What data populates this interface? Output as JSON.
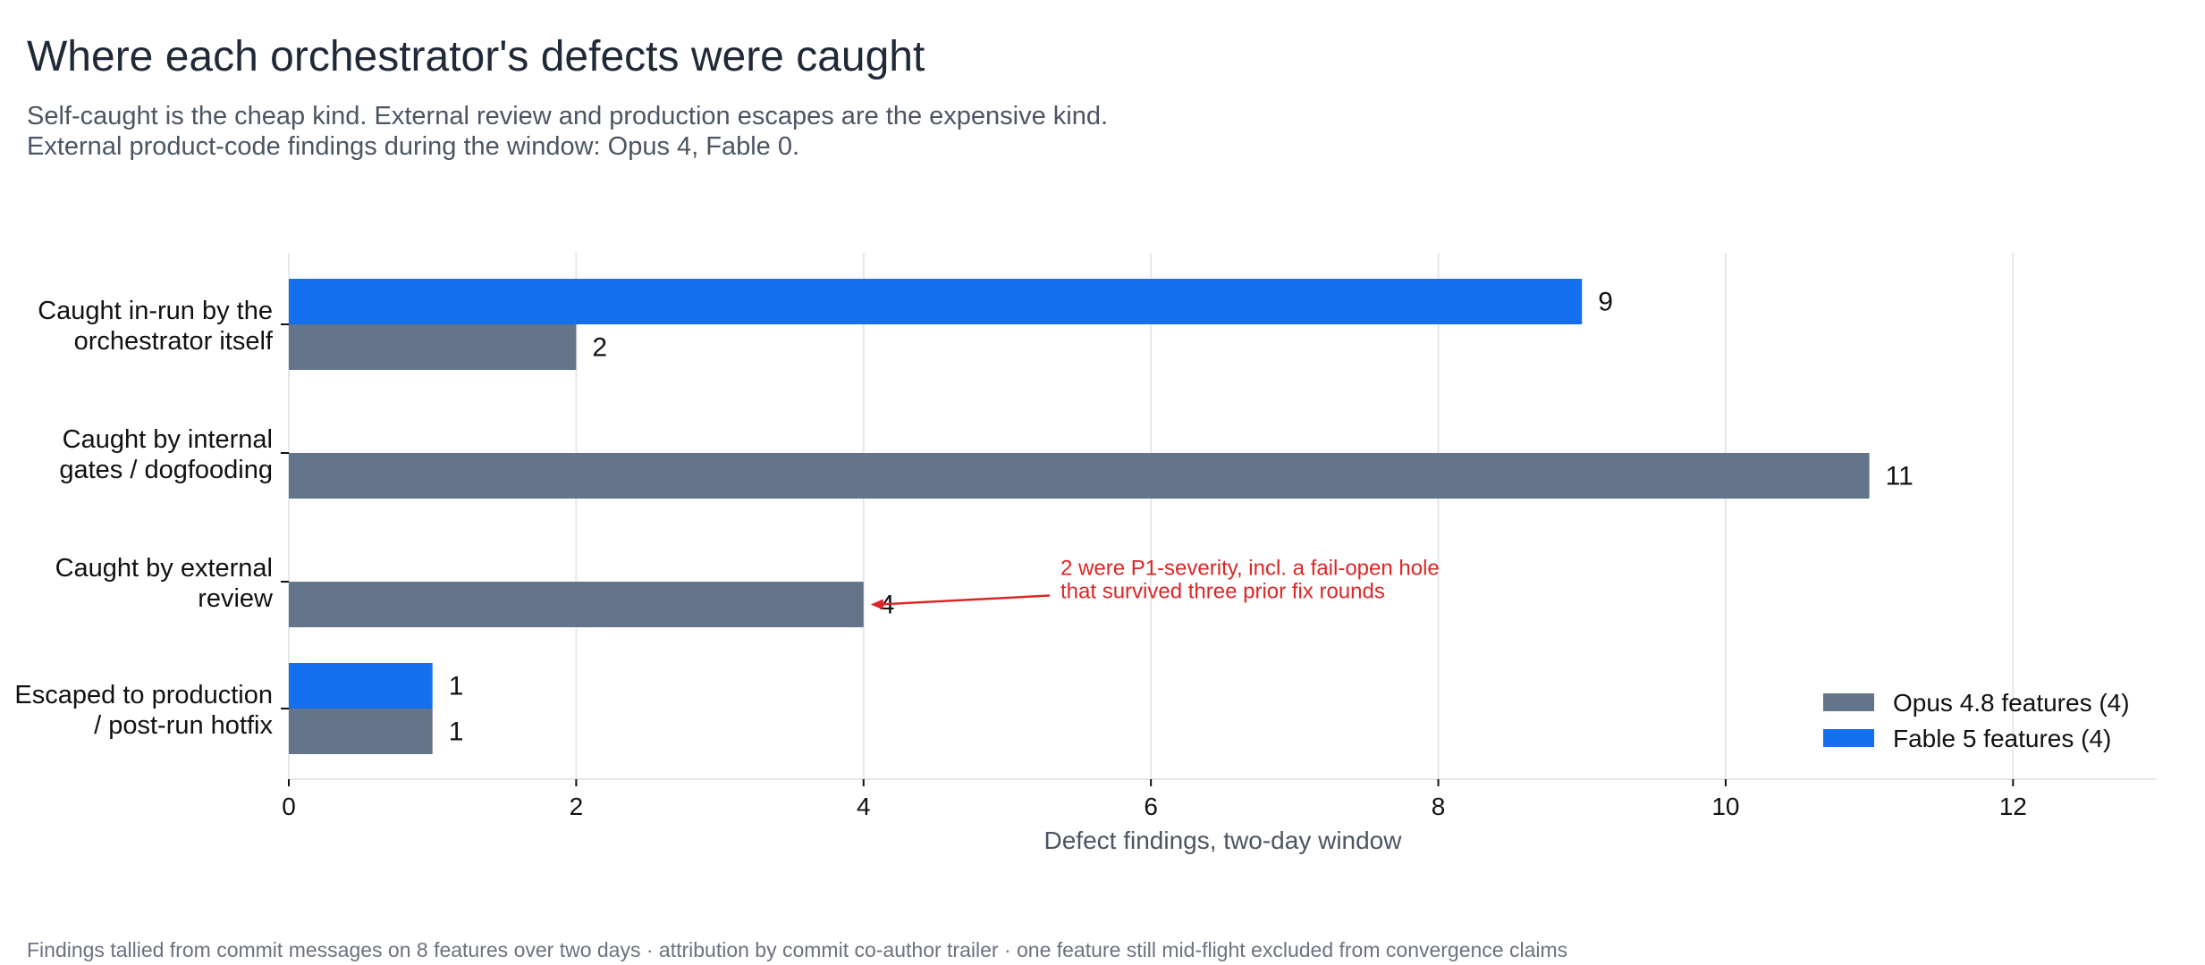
{
  "title": "Where each orchestrator's defects were caught",
  "subtitle_lines": [
    "Self-caught is the cheap kind. External review and production escapes are the expensive kind.",
    "External product-code findings during the window: Opus 4, Fable 0."
  ],
  "footnote": "Findings tallied from commit messages on 8 features over two days · attribution by commit co-author trailer · one feature still mid-flight excluded from convergence claims",
  "colors": {
    "opus": "#64748b",
    "fable": "#1570ef",
    "annotation": "#dc2626",
    "grid": "#e5e7eb"
  },
  "chart_data": {
    "type": "bar",
    "orientation": "horizontal",
    "categories": [
      [
        "Caught in-run by the",
        "orchestrator itself"
      ],
      [
        "Caught by internal",
        "gates / dogfooding"
      ],
      [
        "Caught by external",
        "review"
      ],
      [
        "Escaped to production",
        "/ post-run hotfix"
      ]
    ],
    "series": [
      {
        "name": "Opus 4.8 features (4)",
        "values": [
          2,
          11,
          4,
          1
        ]
      },
      {
        "name": "Fable 5 features (4)",
        "values": [
          9,
          0,
          0,
          1
        ]
      }
    ],
    "xlabel": "Defect findings, two-day window",
    "ylabel": "",
    "xlim": [
      0,
      13
    ],
    "xticks": [
      0,
      2,
      4,
      6,
      8,
      10,
      12
    ],
    "grid": true,
    "legend_position": "bottom-right",
    "annotation": {
      "category_index": 2,
      "series_index": 0,
      "x": 4,
      "lines": [
        "2 were P1-severity, incl. a fail-open hole",
        "that survived three prior fix rounds"
      ]
    }
  }
}
